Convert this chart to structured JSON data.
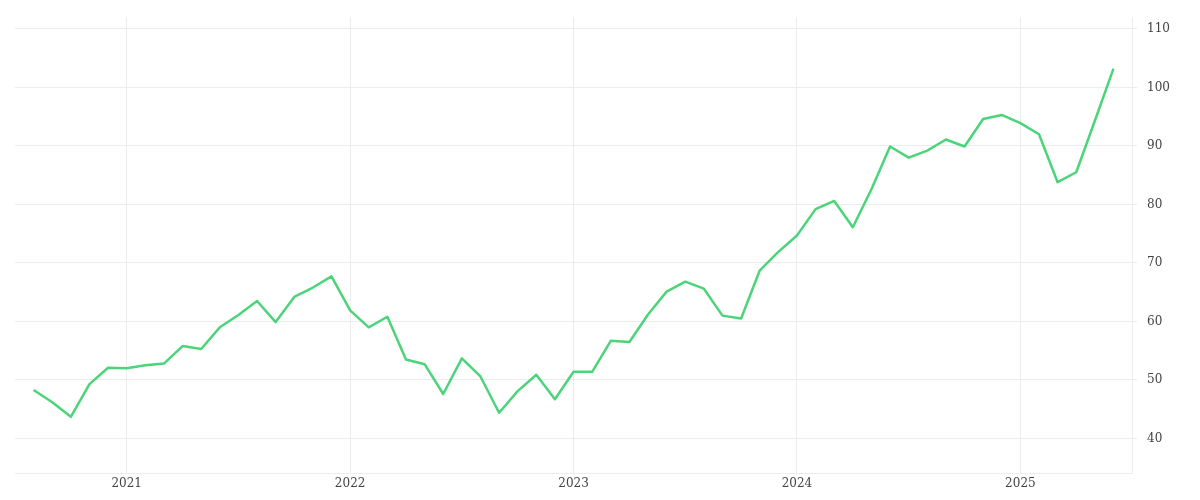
{
  "chart_data": {
    "type": "line",
    "x": [
      "2020-08",
      "2020-09",
      "2020-10",
      "2020-11",
      "2020-12",
      "2021-01",
      "2021-02",
      "2021-03",
      "2021-04",
      "2021-05",
      "2021-06",
      "2021-07",
      "2021-08",
      "2021-09",
      "2021-10",
      "2021-11",
      "2021-12",
      "2022-01",
      "2022-02",
      "2022-03",
      "2022-04",
      "2022-05",
      "2022-06",
      "2022-07",
      "2022-08",
      "2022-09",
      "2022-10",
      "2022-11",
      "2022-12",
      "2023-01",
      "2023-02",
      "2023-03",
      "2023-04",
      "2023-05",
      "2023-06",
      "2023-07",
      "2023-08",
      "2023-09",
      "2023-10",
      "2023-11",
      "2023-12",
      "2024-01",
      "2024-02",
      "2024-03",
      "2024-04",
      "2024-05",
      "2024-06",
      "2024-07",
      "2024-08",
      "2024-09",
      "2024-10",
      "2024-11",
      "2024-12",
      "2025-01",
      "2025-02",
      "2025-03",
      "2025-04",
      "2025-05",
      "2025-06"
    ],
    "series": [
      {
        "color": "#4cd47a",
        "values": [
          48.3,
          46.2,
          43.7,
          49.3,
          52.1,
          52.0,
          52.5,
          52.8,
          55.8,
          55.3,
          59.0,
          61.1,
          63.5,
          59.9,
          64.2,
          65.8,
          67.7,
          61.9,
          59.0,
          60.8,
          53.5,
          52.7,
          47.6,
          53.7,
          50.6,
          44.4,
          48.1,
          50.9,
          46.7,
          51.4,
          51.4,
          56.7,
          56.5,
          61.2,
          65.1,
          66.8,
          65.6,
          61.0,
          60.5,
          68.7,
          71.9,
          74.7,
          79.2,
          80.6,
          76.1,
          82.6,
          89.9,
          88.0,
          89.2,
          91.1,
          89.9,
          94.6,
          95.3,
          93.9,
          92.0,
          83.8,
          85.5,
          94.3,
          103.2
        ]
      }
    ],
    "xlim": [
      "2020-07",
      "2025-07"
    ],
    "xticks": [
      "2021",
      "2022",
      "2023",
      "2024",
      "2025"
    ],
    "ylim": [
      34,
      112
    ],
    "yticks": [
      40,
      50,
      60,
      70,
      80,
      90,
      100,
      110
    ],
    "grid": true,
    "legend": false,
    "marker": "none",
    "line_style": "solid"
  }
}
